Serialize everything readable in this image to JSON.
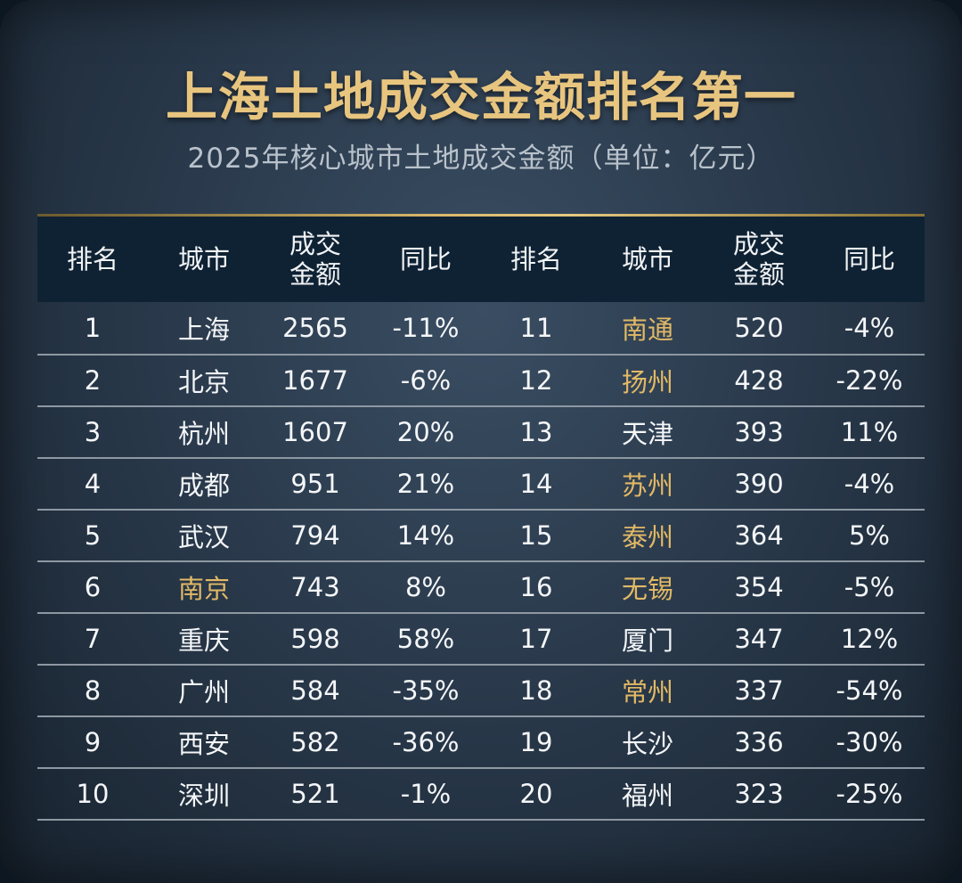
{
  "title": "上海土地成交金额排名第一",
  "subtitle": "2025年核心城市土地成交金额（单位：亿元）",
  "colors": {
    "title_gold": "#e8c57f",
    "city_highlight_gold": "#e2b965",
    "header_bg": "#0f2234",
    "text": "#f4f6f8"
  },
  "chart_data": {
    "type": "table",
    "title": "上海土地成交金额排名第一",
    "subtitle": "2025年核心城市土地成交金额（单位：亿元）",
    "headers": {
      "rank": "排名",
      "city": "城市",
      "amount_line1": "成交",
      "amount_line2": "金额",
      "yoy": "同比"
    },
    "rows": [
      {
        "rank": "1",
        "city": "上海",
        "amount": "2565",
        "yoy": "-11%",
        "highlight": false
      },
      {
        "rank": "2",
        "city": "北京",
        "amount": "1677",
        "yoy": "-6%",
        "highlight": false
      },
      {
        "rank": "3",
        "city": "杭州",
        "amount": "1607",
        "yoy": "20%",
        "highlight": false
      },
      {
        "rank": "4",
        "city": "成都",
        "amount": "951",
        "yoy": "21%",
        "highlight": false
      },
      {
        "rank": "5",
        "city": "武汉",
        "amount": "794",
        "yoy": "14%",
        "highlight": false
      },
      {
        "rank": "6",
        "city": "南京",
        "amount": "743",
        "yoy": "8%",
        "highlight": true
      },
      {
        "rank": "7",
        "city": "重庆",
        "amount": "598",
        "yoy": "58%",
        "highlight": false
      },
      {
        "rank": "8",
        "city": "广州",
        "amount": "584",
        "yoy": "-35%",
        "highlight": false
      },
      {
        "rank": "9",
        "city": "西安",
        "amount": "582",
        "yoy": "-36%",
        "highlight": false
      },
      {
        "rank": "10",
        "city": "深圳",
        "amount": "521",
        "yoy": "-1%",
        "highlight": false
      },
      {
        "rank": "11",
        "city": "南通",
        "amount": "520",
        "yoy": "-4%",
        "highlight": true
      },
      {
        "rank": "12",
        "city": "扬州",
        "amount": "428",
        "yoy": "-22%",
        "highlight": true
      },
      {
        "rank": "13",
        "city": "天津",
        "amount": "393",
        "yoy": "11%",
        "highlight": false
      },
      {
        "rank": "14",
        "city": "苏州",
        "amount": "390",
        "yoy": "-4%",
        "highlight": true
      },
      {
        "rank": "15",
        "city": "泰州",
        "amount": "364",
        "yoy": "5%",
        "highlight": true
      },
      {
        "rank": "16",
        "city": "无锡",
        "amount": "354",
        "yoy": "-5%",
        "highlight": true
      },
      {
        "rank": "17",
        "city": "厦门",
        "amount": "347",
        "yoy": "12%",
        "highlight": false
      },
      {
        "rank": "18",
        "city": "常州",
        "amount": "337",
        "yoy": "-54%",
        "highlight": true
      },
      {
        "rank": "19",
        "city": "长沙",
        "amount": "336",
        "yoy": "-30%",
        "highlight": false
      },
      {
        "rank": "20",
        "city": "福州",
        "amount": "323",
        "yoy": "-25%",
        "highlight": false
      }
    ]
  }
}
